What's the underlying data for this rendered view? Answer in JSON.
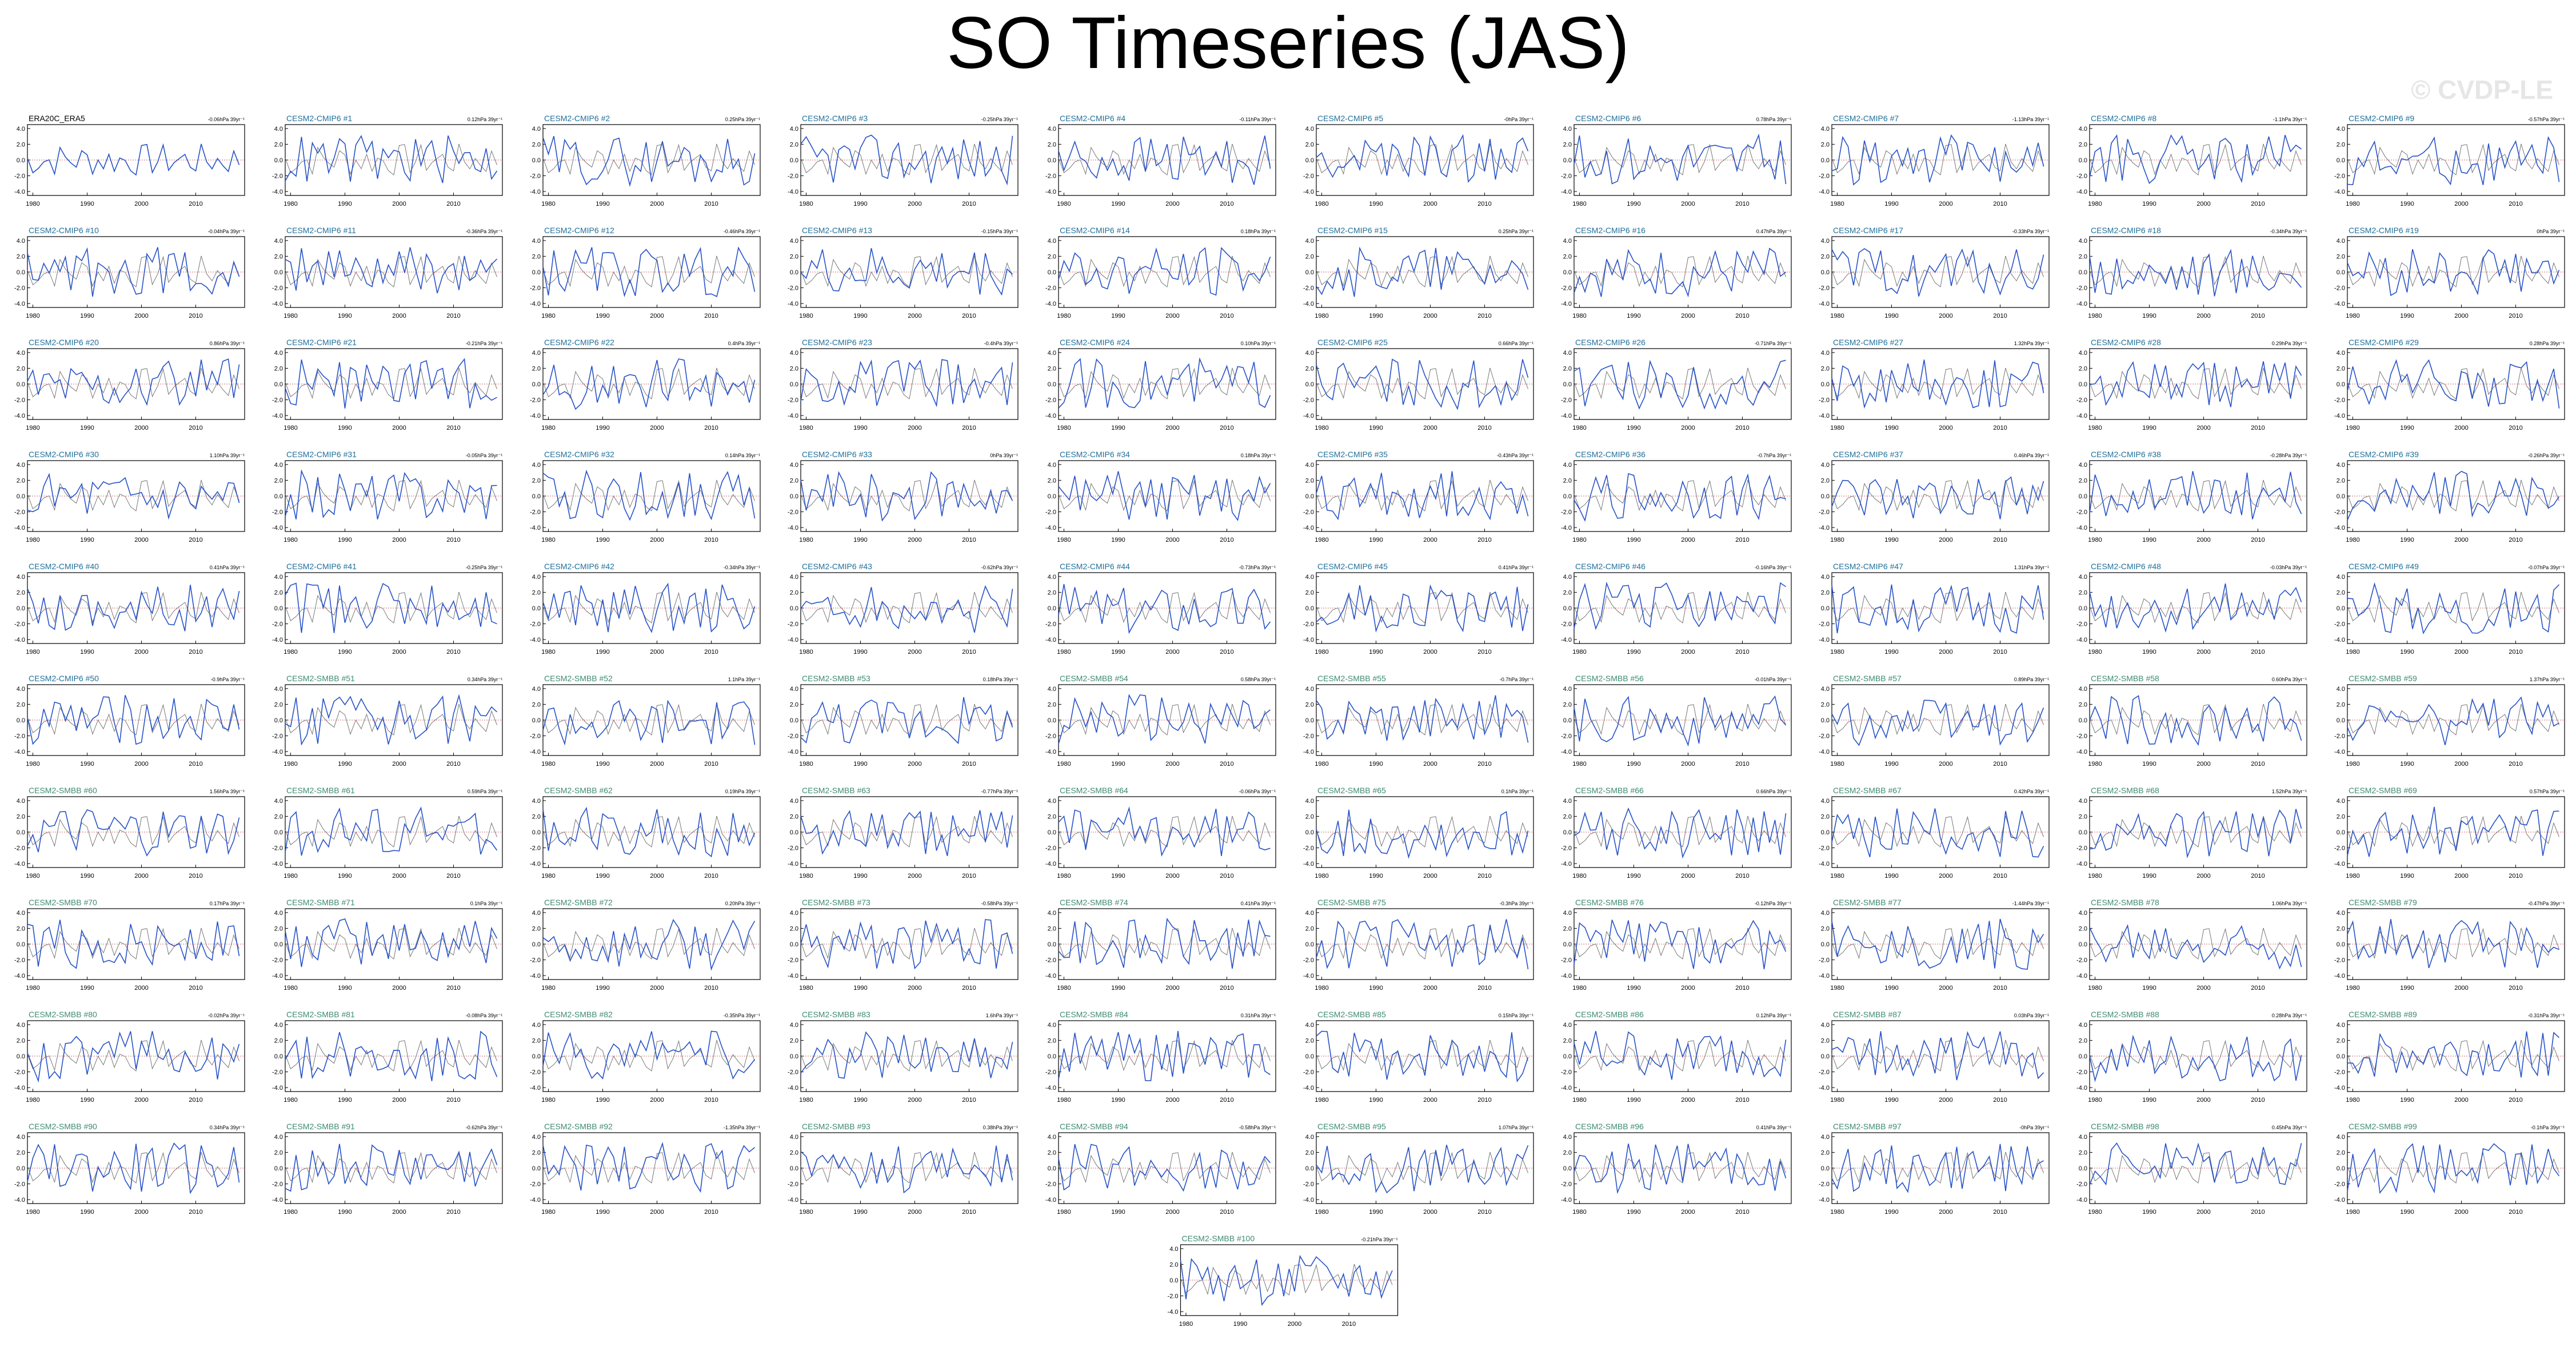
{
  "title": "SO Timeseries (JAS)",
  "watermark": "© CVDP-LE",
  "colors": {
    "observation": "#000000",
    "cmip6_title": "#1f6f9a",
    "smbb_title": "#3d8a70",
    "ensemble_line": "#2752c8",
    "obs_overlay": "#777777",
    "zero_line": "#c04040"
  },
  "chart_data": {
    "type": "line",
    "x_ticks": [
      "1980",
      "1990",
      "2000",
      "2010"
    ],
    "xlim": [
      1979,
      2019
    ],
    "y_ticks": [
      "4.0",
      "2.0",
      "0.0",
      "-2.0",
      "-4.0"
    ],
    "ylim": [
      -4.5,
      4.5
    ],
    "grid": false,
    "panels": [
      {
        "label": "ERA20C_ERA5",
        "trend": "-0.06hPa 39yr⁻¹",
        "group": "obs"
      },
      {
        "label": "CESM2-CMIP6 #1",
        "trend": "0.12hPa 39yr⁻¹",
        "group": "cmip6"
      },
      {
        "label": "CESM2-CMIP6 #2",
        "trend": "0.25hPa 39yr⁻¹",
        "group": "cmip6"
      },
      {
        "label": "CESM2-CMIP6 #3",
        "trend": "-0.25hPa 39yr⁻¹",
        "group": "cmip6"
      },
      {
        "label": "CESM2-CMIP6 #4",
        "trend": "-0.11hPa 39yr⁻¹",
        "group": "cmip6"
      },
      {
        "label": "CESM2-CMIP6 #5",
        "trend": "-0hPa 39yr⁻¹",
        "group": "cmip6"
      },
      {
        "label": "CESM2-CMIP6 #6",
        "trend": "0.78hPa 39yr⁻¹",
        "group": "cmip6"
      },
      {
        "label": "CESM2-CMIP6 #7",
        "trend": "-1.13hPa 39yr⁻¹",
        "group": "cmip6"
      },
      {
        "label": "CESM2-CMIP6 #8",
        "trend": "-1.1hPa 39yr⁻¹",
        "group": "cmip6"
      },
      {
        "label": "CESM2-CMIP6 #9",
        "trend": "-0.57hPa 39yr⁻¹",
        "group": "cmip6"
      },
      {
        "label": "CESM2-CMIP6 #10",
        "trend": "-0.04hPa 39yr⁻¹",
        "group": "cmip6"
      },
      {
        "label": "CESM2-CMIP6 #11",
        "trend": "-0.36hPa 39yr⁻¹",
        "group": "cmip6"
      },
      {
        "label": "CESM2-CMIP6 #12",
        "trend": "-0.46hPa 39yr⁻¹",
        "group": "cmip6"
      },
      {
        "label": "CESM2-CMIP6 #13",
        "trend": "-0.15hPa 39yr⁻¹",
        "group": "cmip6"
      },
      {
        "label": "CESM2-CMIP6 #14",
        "trend": "0.18hPa 39yr⁻¹",
        "group": "cmip6"
      },
      {
        "label": "CESM2-CMIP6 #15",
        "trend": "0.25hPa 39yr⁻¹",
        "group": "cmip6"
      },
      {
        "label": "CESM2-CMIP6 #16",
        "trend": "0.47hPa 39yr⁻¹",
        "group": "cmip6"
      },
      {
        "label": "CESM2-CMIP6 #17",
        "trend": "-0.33hPa 39yr⁻¹",
        "group": "cmip6"
      },
      {
        "label": "CESM2-CMIP6 #18",
        "trend": "-0.34hPa 39yr⁻¹",
        "group": "cmip6"
      },
      {
        "label": "CESM2-CMIP6 #19",
        "trend": "0hPa 39yr⁻¹",
        "group": "cmip6"
      },
      {
        "label": "CESM2-CMIP6 #20",
        "trend": "0.86hPa 39yr⁻¹",
        "group": "cmip6"
      },
      {
        "label": "CESM2-CMIP6 #21",
        "trend": "-0.21hPa 39yr⁻¹",
        "group": "cmip6"
      },
      {
        "label": "CESM2-CMIP6 #22",
        "trend": "0.4hPa 39yr⁻¹",
        "group": "cmip6"
      },
      {
        "label": "CESM2-CMIP6 #23",
        "trend": "-0.4hPa 39yr⁻¹",
        "group": "cmip6"
      },
      {
        "label": "CESM2-CMIP6 #24",
        "trend": "0.10hPa 39yr⁻¹",
        "group": "cmip6"
      },
      {
        "label": "CESM2-CMIP6 #25",
        "trend": "0.66hPa 39yr⁻¹",
        "group": "cmip6"
      },
      {
        "label": "CESM2-CMIP6 #26",
        "trend": "-0.71hPa 39yr⁻¹",
        "group": "cmip6"
      },
      {
        "label": "CESM2-CMIP6 #27",
        "trend": "1.32hPa 39yr⁻¹",
        "group": "cmip6"
      },
      {
        "label": "CESM2-CMIP6 #28",
        "trend": "0.29hPa 39yr⁻¹",
        "group": "cmip6"
      },
      {
        "label": "CESM2-CMIP6 #29",
        "trend": "0.28hPa 39yr⁻¹",
        "group": "cmip6"
      },
      {
        "label": "CESM2-CMIP6 #30",
        "trend": "1.10hPa 39yr⁻¹",
        "group": "cmip6"
      },
      {
        "label": "CESM2-CMIP6 #31",
        "trend": "-0.05hPa 39yr⁻¹",
        "group": "cmip6"
      },
      {
        "label": "CESM2-CMIP6 #32",
        "trend": "0.14hPa 39yr⁻¹",
        "group": "cmip6"
      },
      {
        "label": "CESM2-CMIP6 #33",
        "trend": "0hPa 39yr⁻¹",
        "group": "cmip6"
      },
      {
        "label": "CESM2-CMIP6 #34",
        "trend": "0.18hPa 39yr⁻¹",
        "group": "cmip6"
      },
      {
        "label": "CESM2-CMIP6 #35",
        "trend": "-0.43hPa 39yr⁻¹",
        "group": "cmip6"
      },
      {
        "label": "CESM2-CMIP6 #36",
        "trend": "-0.7hPa 39yr⁻¹",
        "group": "cmip6"
      },
      {
        "label": "CESM2-CMIP6 #37",
        "trend": "0.46hPa 39yr⁻¹",
        "group": "cmip6"
      },
      {
        "label": "CESM2-CMIP6 #38",
        "trend": "-0.28hPa 39yr⁻¹",
        "group": "cmip6"
      },
      {
        "label": "CESM2-CMIP6 #39",
        "trend": "-0.26hPa 39yr⁻¹",
        "group": "cmip6"
      },
      {
        "label": "CESM2-CMIP6 #40",
        "trend": "0.41hPa 39yr⁻¹",
        "group": "cmip6"
      },
      {
        "label": "CESM2-CMIP6 #41",
        "trend": "-0.25hPa 39yr⁻¹",
        "group": "cmip6"
      },
      {
        "label": "CESM2-CMIP6 #42",
        "trend": "-0.34hPa 39yr⁻¹",
        "group": "cmip6"
      },
      {
        "label": "CESM2-CMIP6 #43",
        "trend": "-0.62hPa 39yr⁻¹",
        "group": "cmip6"
      },
      {
        "label": "CESM2-CMIP6 #44",
        "trend": "-0.73hPa 39yr⁻¹",
        "group": "cmip6"
      },
      {
        "label": "CESM2-CMIP6 #45",
        "trend": "0.41hPa 39yr⁻¹",
        "group": "cmip6"
      },
      {
        "label": "CESM2-CMIP6 #46",
        "trend": "-0.16hPa 39yr⁻¹",
        "group": "cmip6"
      },
      {
        "label": "CESM2-CMIP6 #47",
        "trend": "1.31hPa 39yr⁻¹",
        "group": "cmip6"
      },
      {
        "label": "CESM2-CMIP6 #48",
        "trend": "-0.03hPa 39yr⁻¹",
        "group": "cmip6"
      },
      {
        "label": "CESM2-CMIP6 #49",
        "trend": "-0.07hPa 39yr⁻¹",
        "group": "cmip6"
      },
      {
        "label": "CESM2-CMIP6 #50",
        "trend": "-0.9hPa 39yr⁻¹",
        "group": "cmip6"
      },
      {
        "label": "CESM2-SMBB #51",
        "trend": "0.34hPa 39yr⁻¹",
        "group": "smbb"
      },
      {
        "label": "CESM2-SMBB #52",
        "trend": "1.1hPa 39yr⁻¹",
        "group": "smbb"
      },
      {
        "label": "CESM2-SMBB #53",
        "trend": "0.18hPa 39yr⁻¹",
        "group": "smbb"
      },
      {
        "label": "CESM2-SMBB #54",
        "trend": "0.58hPa 39yr⁻¹",
        "group": "smbb"
      },
      {
        "label": "CESM2-SMBB #55",
        "trend": "-0.7hPa 39yr⁻¹",
        "group": "smbb"
      },
      {
        "label": "CESM2-SMBB #56",
        "trend": "-0.01hPa 39yr⁻¹",
        "group": "smbb"
      },
      {
        "label": "CESM2-SMBB #57",
        "trend": "0.89hPa 39yr⁻¹",
        "group": "smbb"
      },
      {
        "label": "CESM2-SMBB #58",
        "trend": "0.60hPa 39yr⁻¹",
        "group": "smbb"
      },
      {
        "label": "CESM2-SMBB #59",
        "trend": "1.37hPa 39yr⁻¹",
        "group": "smbb"
      },
      {
        "label": "CESM2-SMBB #60",
        "trend": "1.56hPa 39yr⁻¹",
        "group": "smbb"
      },
      {
        "label": "CESM2-SMBB #61",
        "trend": "0.59hPa 39yr⁻¹",
        "group": "smbb"
      },
      {
        "label": "CESM2-SMBB #62",
        "trend": "0.19hPa 39yr⁻¹",
        "group": "smbb"
      },
      {
        "label": "CESM2-SMBB #63",
        "trend": "-0.77hPa 39yr⁻¹",
        "group": "smbb"
      },
      {
        "label": "CESM2-SMBB #64",
        "trend": "-0.06hPa 39yr⁻¹",
        "group": "smbb"
      },
      {
        "label": "CESM2-SMBB #65",
        "trend": "0.1hPa 39yr⁻¹",
        "group": "smbb"
      },
      {
        "label": "CESM2-SMBB #66",
        "trend": "0.66hPa 39yr⁻¹",
        "group": "smbb"
      },
      {
        "label": "CESM2-SMBB #67",
        "trend": "0.42hPa 39yr⁻¹",
        "group": "smbb"
      },
      {
        "label": "CESM2-SMBB #68",
        "trend": "1.52hPa 39yr⁻¹",
        "group": "smbb"
      },
      {
        "label": "CESM2-SMBB #69",
        "trend": "0.57hPa 39yr⁻¹",
        "group": "smbb"
      },
      {
        "label": "CESM2-SMBB #70",
        "trend": "0.17hPa 39yr⁻¹",
        "group": "smbb"
      },
      {
        "label": "CESM2-SMBB #71",
        "trend": "0.1hPa 39yr⁻¹",
        "group": "smbb"
      },
      {
        "label": "CESM2-SMBB #72",
        "trend": "0.20hPa 39yr⁻¹",
        "group": "smbb"
      },
      {
        "label": "CESM2-SMBB #73",
        "trend": "-0.58hPa 39yr⁻¹",
        "group": "smbb"
      },
      {
        "label": "CESM2-SMBB #74",
        "trend": "0.41hPa 39yr⁻¹",
        "group": "smbb"
      },
      {
        "label": "CESM2-SMBB #75",
        "trend": "-0.3hPa 39yr⁻¹",
        "group": "smbb"
      },
      {
        "label": "CESM2-SMBB #76",
        "trend": "-0.12hPa 39yr⁻¹",
        "group": "smbb"
      },
      {
        "label": "CESM2-SMBB #77",
        "trend": "-1.44hPa 39yr⁻¹",
        "group": "smbb"
      },
      {
        "label": "CESM2-SMBB #78",
        "trend": "1.06hPa 39yr⁻¹",
        "group": "smbb"
      },
      {
        "label": "CESM2-SMBB #79",
        "trend": "-0.47hPa 39yr⁻¹",
        "group": "smbb"
      },
      {
        "label": "CESM2-SMBB #80",
        "trend": "-0.02hPa 39yr⁻¹",
        "group": "smbb"
      },
      {
        "label": "CESM2-SMBB #81",
        "trend": "-0.08hPa 39yr⁻¹",
        "group": "smbb"
      },
      {
        "label": "CESM2-SMBB #82",
        "trend": "-0.35hPa 39yr⁻¹",
        "group": "smbb"
      },
      {
        "label": "CESM2-SMBB #83",
        "trend": "1.6hPa 39yr⁻¹",
        "group": "smbb"
      },
      {
        "label": "CESM2-SMBB #84",
        "trend": "0.31hPa 39yr⁻¹",
        "group": "smbb"
      },
      {
        "label": "CESM2-SMBB #85",
        "trend": "0.15hPa 39yr⁻¹",
        "group": "smbb"
      },
      {
        "label": "CESM2-SMBB #86",
        "trend": "0.12hPa 39yr⁻¹",
        "group": "smbb"
      },
      {
        "label": "CESM2-SMBB #87",
        "trend": "0.03hPa 39yr⁻¹",
        "group": "smbb"
      },
      {
        "label": "CESM2-SMBB #88",
        "trend": "0.28hPa 39yr⁻¹",
        "group": "smbb"
      },
      {
        "label": "CESM2-SMBB #89",
        "trend": "-0.31hPa 39yr⁻¹",
        "group": "smbb"
      },
      {
        "label": "CESM2-SMBB #90",
        "trend": "0.34hPa 39yr⁻¹",
        "group": "smbb"
      },
      {
        "label": "CESM2-SMBB #91",
        "trend": "-0.62hPa 39yr⁻¹",
        "group": "smbb"
      },
      {
        "label": "CESM2-SMBB #92",
        "trend": "-1.35hPa 39yr⁻¹",
        "group": "smbb"
      },
      {
        "label": "CESM2-SMBB #93",
        "trend": "0.38hPa 39yr⁻¹",
        "group": "smbb"
      },
      {
        "label": "CESM2-SMBB #94",
        "trend": "-0.58hPa 39yr⁻¹",
        "group": "smbb"
      },
      {
        "label": "CESM2-SMBB #95",
        "trend": "1.07hPa 39yr⁻¹",
        "group": "smbb"
      },
      {
        "label": "CESM2-SMBB #96",
        "trend": "0.41hPa 39yr⁻¹",
        "group": "smbb"
      },
      {
        "label": "CESM2-SMBB #97",
        "trend": "-0hPa 39yr⁻¹",
        "group": "smbb"
      },
      {
        "label": "CESM2-SMBB #98",
        "trend": "0.45hPa 39yr⁻¹",
        "group": "smbb"
      },
      {
        "label": "CESM2-SMBB #99",
        "trend": "-0.1hPa 39yr⁻¹",
        "group": "smbb"
      },
      {
        "label": "CESM2-SMBB #100",
        "trend": "-0.21hPa 39yr⁻¹",
        "group": "smbb"
      }
    ]
  }
}
